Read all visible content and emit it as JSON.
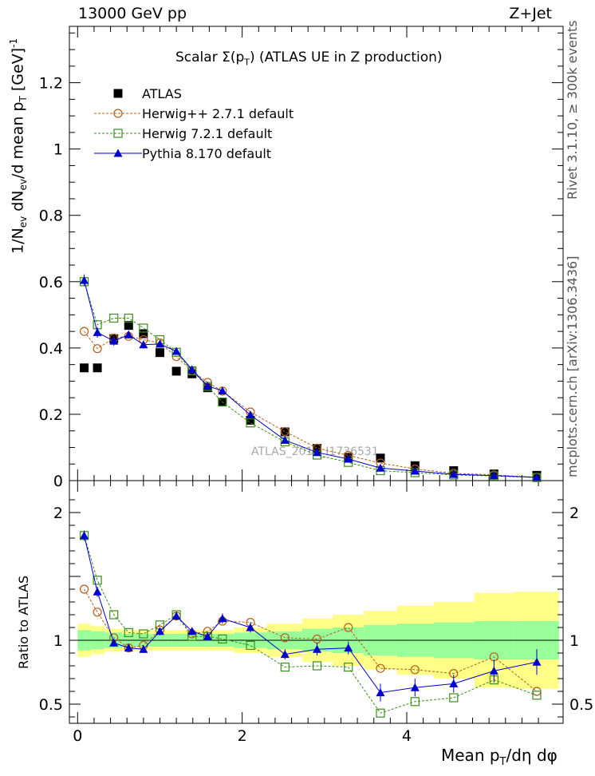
{
  "header": {
    "left": "13000 GeV pp",
    "right": "Z+Jet"
  },
  "side_labels": {
    "rivet": "Rivet 3.1.10, ≥ 300k events",
    "mcplots": "mcplots.cern.ch [arXiv:1306.3436]"
  },
  "watermark": "ATLAS_2019_I1736531",
  "chart_data": [
    {
      "type": "scatter",
      "panel": "main",
      "title": "Scalar Σ(p_T) (ATLAS UE in Z production)",
      "title_main": "Scalar",
      "title_sym": "Σ(p",
      "title_sub": "T",
      "title_close": ")",
      "title_rest": "(ATLAS UE in Z production)",
      "ylabel": "1/N_ev dN_ev/d mean p_T [GeV]^-1",
      "ylabel_parts": {
        "a": "1/N",
        "a_sub": "ev",
        "b": " dN",
        "b_sub": "ev",
        "c": "/d mean p",
        "c_sub": "T",
        "d": " [GeV]",
        "d_sup": "-1"
      },
      "xlim": [
        -0.1,
        5.9
      ],
      "ylim": [
        0,
        1.37
      ],
      "yticks": [
        {
          "v": 0,
          "t": "0"
        },
        {
          "v": 0.2,
          "t": "0.2"
        },
        {
          "v": 0.4,
          "t": "0.4"
        },
        {
          "v": 0.6,
          "t": "0.6"
        },
        {
          "v": 0.8,
          "t": "0.8"
        },
        {
          "v": 1.0,
          "t": "1"
        },
        {
          "v": 1.2,
          "t": "1.2"
        }
      ],
      "legend": [
        {
          "name": "ATLAS",
          "style": "data"
        },
        {
          "name": "Herwig++ 2.7.1 default",
          "style": "herwigpp"
        },
        {
          "name": "Herwig 7.2.1 default",
          "style": "herwig7"
        },
        {
          "name": "Pythia 8.170 default",
          "style": "pythia"
        }
      ],
      "x": [
        0.08,
        0.24,
        0.44,
        0.62,
        0.8,
        1.0,
        1.2,
        1.39,
        1.58,
        1.76,
        2.1,
        2.52,
        2.91,
        3.29,
        3.68,
        4.1,
        4.57,
        5.06,
        5.58
      ],
      "series": [
        {
          "name": "ATLAS",
          "values": [
            0.34,
            0.34,
            0.428,
            0.468,
            0.443,
            0.386,
            0.33,
            0.322,
            0.28,
            0.237,
            0.182,
            0.147,
            0.097,
            0.07,
            0.068,
            0.045,
            0.03,
            0.02,
            0.016
          ]
        },
        {
          "name": "Herwig++ 2.7.1 default",
          "values": [
            0.45,
            0.398,
            0.43,
            0.435,
            0.425,
            0.415,
            0.374,
            0.331,
            0.296,
            0.27,
            0.207,
            0.148,
            0.098,
            0.076,
            0.053,
            0.035,
            0.022,
            0.017,
            0.01
          ]
        },
        {
          "name": "Herwig 7.2.1 default",
          "values": [
            0.6,
            0.47,
            0.49,
            0.49,
            0.46,
            0.425,
            0.387,
            0.331,
            0.284,
            0.237,
            0.174,
            0.117,
            0.077,
            0.055,
            0.03,
            0.024,
            0.017,
            0.014,
            0.009
          ]
        },
        {
          "name": "Pythia 8.170 default",
          "values": [
            0.604,
            0.447,
            0.421,
            0.44,
            0.41,
            0.412,
            0.39,
            0.335,
            0.285,
            0.271,
            0.198,
            0.122,
            0.085,
            0.065,
            0.038,
            0.029,
            0.019,
            0.015,
            0.01
          ],
          "errors": [
            0.018,
            0.016,
            0.014,
            0.012,
            0.012,
            0.011,
            0.01,
            0.009,
            0.008,
            0.008,
            0.006,
            0.005,
            0.004,
            0.004,
            0.003,
            0.003,
            0.002,
            0.002,
            0.002
          ]
        }
      ]
    },
    {
      "type": "line",
      "panel": "ratio",
      "ylabel": "Ratio to ATLAS",
      "xlabel": "Mean p_T/dη dφ",
      "xlabel_parts": {
        "a": "Mean p",
        "a_sub": "T",
        "b": "/dη dφ"
      },
      "xlim": [
        -0.1,
        5.9
      ],
      "ylim": [
        0.35,
        2.25
      ],
      "yticks": [
        {
          "v": 0.5,
          "t": "0.5"
        },
        {
          "v": 1.0,
          "t": "1"
        },
        {
          "v": 2.0,
          "t": "2"
        }
      ],
      "xticks": [
        {
          "v": 0,
          "t": "0"
        },
        {
          "v": 2,
          "t": "2"
        },
        {
          "v": 4,
          "t": "4"
        }
      ],
      "x": [
        0.08,
        0.24,
        0.44,
        0.62,
        0.8,
        1.0,
        1.2,
        1.39,
        1.58,
        1.76,
        2.1,
        2.52,
        2.91,
        3.29,
        3.68,
        4.1,
        4.57,
        5.06,
        5.58
      ],
      "band_edges": [
        0.0,
        0.16,
        0.33,
        0.54,
        0.71,
        0.9,
        1.1,
        1.3,
        1.48,
        1.67,
        1.9,
        2.3,
        2.73,
        3.1,
        3.48,
        3.88,
        4.33,
        4.82,
        5.3,
        5.85
      ],
      "band_inner": [
        0.08,
        0.07,
        0.06,
        0.05,
        0.05,
        0.05,
        0.05,
        0.05,
        0.05,
        0.05,
        0.06,
        0.07,
        0.09,
        0.1,
        0.12,
        0.13,
        0.14,
        0.15,
        0.15
      ],
      "band_outer": [
        0.13,
        0.11,
        0.09,
        0.08,
        0.08,
        0.08,
        0.08,
        0.08,
        0.08,
        0.08,
        0.1,
        0.13,
        0.17,
        0.2,
        0.23,
        0.27,
        0.3,
        0.37,
        0.38
      ],
      "series": [
        {
          "name": "Herwig++ 2.7.1 default",
          "values": [
            1.4,
            1.22,
            1.02,
            0.94,
            0.96,
            1.08,
            1.19,
            1.05,
            1.07,
            1.15,
            1.14,
            1.02,
            1.01,
            1.1,
            0.78,
            0.77,
            0.74,
            0.87,
            0.6
          ]
        },
        {
          "name": "Herwig 7.2.1 default",
          "values": [
            1.82,
            1.47,
            1.2,
            1.06,
            1.05,
            1.12,
            1.2,
            1.03,
            1.03,
            1.01,
            0.96,
            0.79,
            0.8,
            0.79,
            0.43,
            0.52,
            0.55,
            0.69,
            0.57
          ]
        },
        {
          "name": "Pythia 8.170 default",
          "values": [
            1.82,
            1.38,
            0.98,
            0.94,
            0.93,
            1.07,
            1.19,
            1.07,
            1.03,
            1.17,
            1.1,
            0.89,
            0.93,
            0.94,
            0.59,
            0.63,
            0.66,
            0.76,
            0.83
          ],
          "errors": [
            0.04,
            0.04,
            0.03,
            0.03,
            0.03,
            0.03,
            0.03,
            0.03,
            0.03,
            0.04,
            0.04,
            0.04,
            0.05,
            0.05,
            0.07,
            0.07,
            0.07,
            0.09,
            0.1
          ]
        }
      ]
    }
  ]
}
